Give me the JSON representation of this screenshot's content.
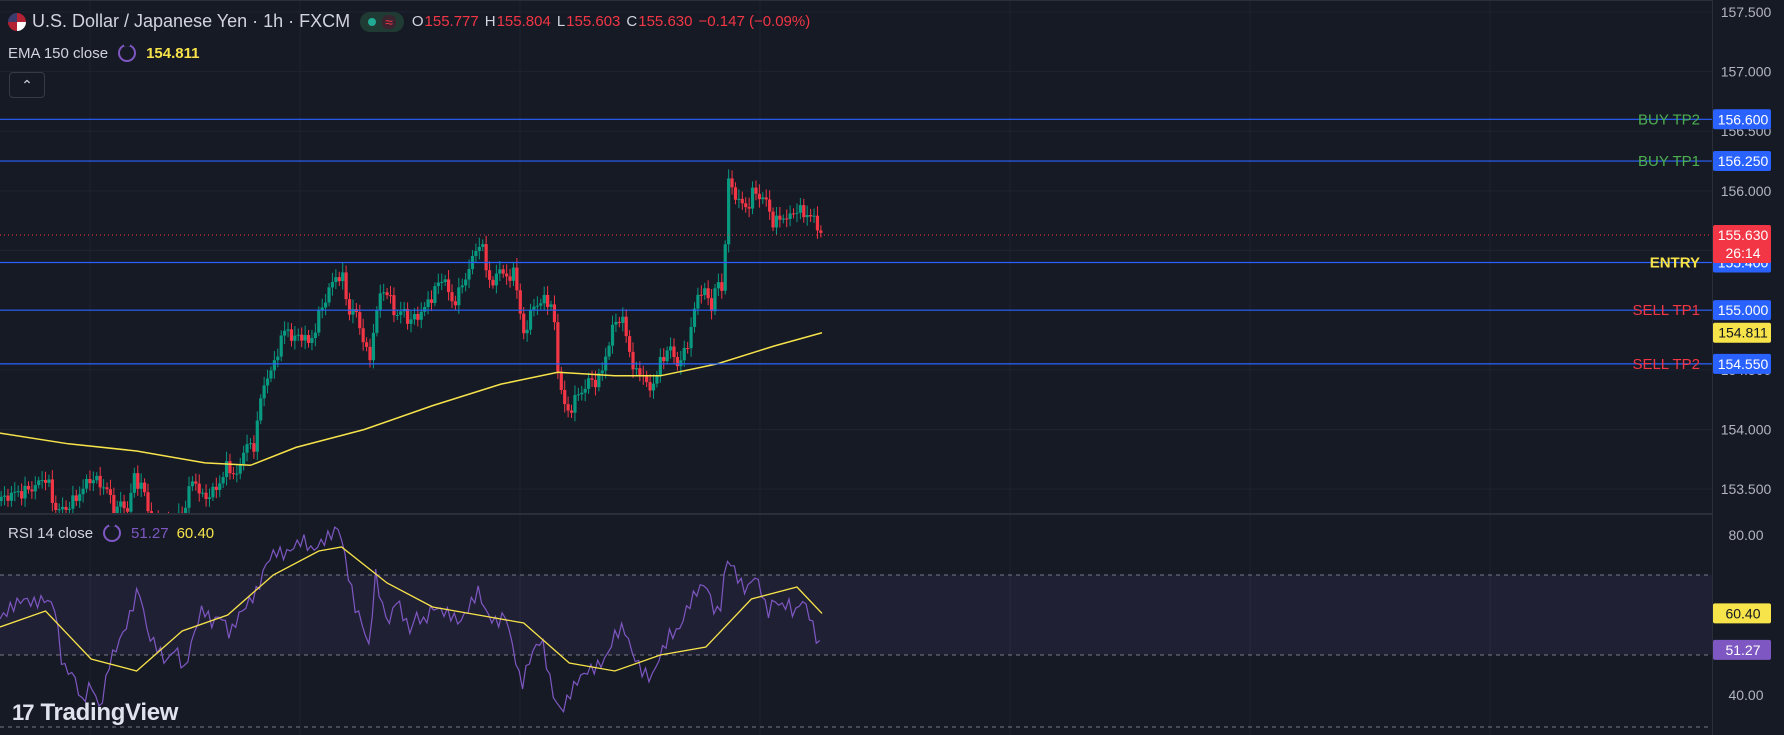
{
  "header": {
    "symbol_title": "U.S. Dollar / Japanese Yen · 1h · FXCM",
    "ohlc": {
      "o_label": "O",
      "o": "155.777",
      "h_label": "H",
      "h": "155.804",
      "l_label": "L",
      "l": "155.603",
      "c_label": "C",
      "c": "155.630",
      "change": "−0.147 (−0.09%)"
    },
    "status_wave_glyph": "≈",
    "collapse_glyph": "⌃"
  },
  "indicators": {
    "ema_label": "EMA 150 close",
    "ema_value": "154.811",
    "rsi_label": "RSI 14 close",
    "rsi_value": "51.27",
    "rsi_ma_value": "60.40"
  },
  "brand": {
    "name": "TradingView",
    "mark": "17"
  },
  "colors": {
    "background": "#161a25",
    "up": "#089981",
    "down": "#f23645",
    "ema": "#f7e34a",
    "rsi": "#7e57c2",
    "level_line": "#2962ff",
    "buy_label": "#4caf50",
    "sell_label": "#f23645",
    "entry_label": "#f7e34a"
  },
  "chart_data": [
    {
      "type": "candlestick",
      "symbol": "U.S. Dollar / Japanese Yen",
      "interval": "1h",
      "y_ticks": [
        "157.500",
        "157.000",
        "156.500",
        "156.000",
        "155.500",
        "155.000",
        "154.500",
        "154.000",
        "153.500"
      ],
      "ylim": [
        153.3,
        157.6
      ],
      "current_price": {
        "value": "155.630",
        "countdown": "26:14"
      },
      "levels": [
        {
          "label": "BUY TP2",
          "value": "156.600",
          "kind": "buy"
        },
        {
          "label": "BUY TP1",
          "value": "156.250",
          "kind": "buy"
        },
        {
          "label": "ENTRY",
          "value": "155.400",
          "kind": "entry"
        },
        {
          "label": "SELL TP1",
          "value": "155.000",
          "kind": "sell"
        },
        {
          "label": "SELL TP2",
          "value": "154.550",
          "kind": "sell"
        }
      ],
      "ema_last_label": "154.811",
      "waypoints": [
        [
          0,
          153.4
        ],
        [
          10,
          153.46
        ],
        [
          22,
          153.48
        ],
        [
          30,
          153.52
        ],
        [
          40,
          153.6
        ],
        [
          44,
          153.5
        ],
        [
          47,
          153.35
        ],
        [
          55,
          153.32
        ],
        [
          65,
          153.4
        ],
        [
          80,
          153.6
        ],
        [
          94,
          153.5
        ],
        [
          100,
          153.32
        ],
        [
          108,
          153.38
        ],
        [
          112,
          153.32
        ],
        [
          118,
          153.6
        ],
        [
          126,
          153.5
        ],
        [
          132,
          153.25
        ],
        [
          140,
          153.2
        ],
        [
          150,
          153.18
        ],
        [
          160,
          153.3
        ],
        [
          170,
          153.6
        ],
        [
          178,
          153.42
        ],
        [
          190,
          153.5
        ],
        [
          200,
          153.7
        ],
        [
          208,
          153.6
        ],
        [
          216,
          153.9
        ],
        [
          222,
          153.8
        ],
        [
          228,
          154.2
        ],
        [
          234,
          154.45
        ],
        [
          240,
          154.5
        ],
        [
          246,
          154.75
        ],
        [
          252,
          154.85
        ],
        [
          258,
          154.75
        ],
        [
          266,
          154.8
        ],
        [
          272,
          154.7
        ],
        [
          280,
          154.95
        ],
        [
          288,
          155.15
        ],
        [
          296,
          155.3
        ],
        [
          302,
          155.25
        ],
        [
          306,
          154.98
        ],
        [
          312,
          155.0
        ],
        [
          318,
          154.8
        ],
        [
          324,
          154.55
        ],
        [
          330,
          154.95
        ],
        [
          336,
          155.2
        ],
        [
          342,
          155.1
        ],
        [
          348,
          154.95
        ],
        [
          354,
          155.0
        ],
        [
          360,
          154.9
        ],
        [
          366,
          154.95
        ],
        [
          372,
          155.0
        ],
        [
          378,
          155.1
        ],
        [
          384,
          155.2
        ],
        [
          390,
          155.3
        ],
        [
          396,
          155.05
        ],
        [
          402,
          155.12
        ],
        [
          410,
          155.3
        ],
        [
          416,
          155.45
        ],
        [
          422,
          155.6
        ],
        [
          428,
          155.3
        ],
        [
          434,
          155.2
        ],
        [
          440,
          155.4
        ],
        [
          446,
          155.2
        ],
        [
          452,
          155.4
        ],
        [
          456,
          154.95
        ],
        [
          462,
          154.8
        ],
        [
          468,
          155.05
        ],
        [
          474,
          155.05
        ],
        [
          480,
          155.1
        ],
        [
          486,
          155.0
        ],
        [
          490,
          154.5
        ],
        [
          494,
          154.3
        ],
        [
          498,
          154.1
        ],
        [
          504,
          154.25
        ],
        [
          510,
          154.3
        ],
        [
          516,
          154.4
        ],
        [
          522,
          154.4
        ],
        [
          528,
          154.45
        ],
        [
          534,
          154.7
        ],
        [
          540,
          154.9
        ],
        [
          546,
          154.95
        ],
        [
          552,
          154.7
        ],
        [
          558,
          154.45
        ],
        [
          564,
          154.5
        ],
        [
          570,
          154.3
        ],
        [
          576,
          154.45
        ],
        [
          582,
          154.6
        ],
        [
          588,
          154.7
        ],
        [
          594,
          154.55
        ],
        [
          600,
          154.6
        ],
        [
          606,
          154.8
        ],
        [
          612,
          155.1
        ],
        [
          618,
          155.2
        ],
        [
          624,
          155.0
        ],
        [
          630,
          155.25
        ],
        [
          636,
          155.1
        ],
        [
          638,
          156.1
        ],
        [
          644,
          156.0
        ],
        [
          650,
          155.9
        ],
        [
          656,
          155.85
        ],
        [
          662,
          156.0
        ],
        [
          668,
          155.95
        ],
        [
          674,
          155.9
        ],
        [
          680,
          155.7
        ],
        [
          686,
          155.8
        ],
        [
          692,
          155.75
        ],
        [
          698,
          155.85
        ],
        [
          704,
          155.82
        ],
        [
          710,
          155.8
        ],
        [
          716,
          155.75
        ],
        [
          722,
          155.63
        ]
      ],
      "ema150_waypoints": [
        [
          0,
          153.97
        ],
        [
          60,
          153.88
        ],
        [
          120,
          153.82
        ],
        [
          180,
          153.72
        ],
        [
          220,
          153.7
        ],
        [
          260,
          153.85
        ],
        [
          320,
          154.0
        ],
        [
          380,
          154.2
        ],
        [
          440,
          154.38
        ],
        [
          490,
          154.48
        ],
        [
          540,
          154.45
        ],
        [
          580,
          154.45
        ],
        [
          630,
          154.55
        ],
        [
          680,
          154.7
        ],
        [
          722,
          154.811
        ]
      ]
    },
    {
      "type": "line",
      "name": "RSI 14 close",
      "y_ticks": [
        "80.00",
        "40.00"
      ],
      "ylim": [
        30,
        85
      ],
      "bands": {
        "upper": 70,
        "lower": 50,
        "note": "dashed reference lines"
      },
      "rsi_last_label": "51.27",
      "rsi_ma_last_label": "60.40",
      "rsi_waypoints": [
        [
          0,
          59
        ],
        [
          10,
          62
        ],
        [
          20,
          64
        ],
        [
          30,
          63
        ],
        [
          40,
          64
        ],
        [
          48,
          62
        ],
        [
          55,
          47
        ],
        [
          65,
          45
        ],
        [
          72,
          38
        ],
        [
          80,
          43
        ],
        [
          88,
          36
        ],
        [
          96,
          48
        ],
        [
          104,
          53
        ],
        [
          112,
          58
        ],
        [
          122,
          67
        ],
        [
          130,
          55
        ],
        [
          138,
          52
        ],
        [
          146,
          48
        ],
        [
          154,
          52
        ],
        [
          162,
          46
        ],
        [
          170,
          55
        ],
        [
          178,
          62
        ],
        [
          186,
          58
        ],
        [
          194,
          60
        ],
        [
          202,
          55
        ],
        [
          210,
          60
        ],
        [
          218,
          63
        ],
        [
          226,
          66
        ],
        [
          234,
          73
        ],
        [
          242,
          76
        ],
        [
          250,
          75
        ],
        [
          258,
          77
        ],
        [
          266,
          79
        ],
        [
          274,
          76
        ],
        [
          282,
          78
        ],
        [
          290,
          80
        ],
        [
          298,
          82
        ],
        [
          306,
          70
        ],
        [
          312,
          62
        ],
        [
          318,
          58
        ],
        [
          324,
          52
        ],
        [
          330,
          70
        ],
        [
          336,
          62
        ],
        [
          342,
          58
        ],
        [
          348,
          64
        ],
        [
          354,
          60
        ],
        [
          360,
          56
        ],
        [
          366,
          60
        ],
        [
          372,
          58
        ],
        [
          380,
          62
        ],
        [
          388,
          61
        ],
        [
          396,
          60
        ],
        [
          404,
          58
        ],
        [
          412,
          62
        ],
        [
          420,
          66
        ],
        [
          428,
          60
        ],
        [
          436,
          58
        ],
        [
          444,
          60
        ],
        [
          452,
          50
        ],
        [
          458,
          42
        ],
        [
          464,
          48
        ],
        [
          470,
          52
        ],
        [
          476,
          54
        ],
        [
          482,
          45
        ],
        [
          488,
          38
        ],
        [
          494,
          36
        ],
        [
          500,
          40
        ],
        [
          508,
          44
        ],
        [
          516,
          46
        ],
        [
          524,
          47
        ],
        [
          532,
          49
        ],
        [
          540,
          55
        ],
        [
          548,
          57
        ],
        [
          556,
          50
        ],
        [
          564,
          46
        ],
        [
          572,
          44
        ],
        [
          580,
          50
        ],
        [
          588,
          55
        ],
        [
          596,
          56
        ],
        [
          604,
          62
        ],
        [
          612,
          66
        ],
        [
          620,
          68
        ],
        [
          626,
          62
        ],
        [
          632,
          60
        ],
        [
          638,
          74
        ],
        [
          644,
          72
        ],
        [
          650,
          68
        ],
        [
          656,
          66
        ],
        [
          662,
          70
        ],
        [
          668,
          67
        ],
        [
          674,
          60
        ],
        [
          680,
          64
        ],
        [
          686,
          62
        ],
        [
          692,
          63
        ],
        [
          698,
          60
        ],
        [
          704,
          64
        ],
        [
          710,
          61
        ],
        [
          716,
          55
        ],
        [
          722,
          51.27
        ]
      ],
      "rsi_ma_waypoints": [
        [
          0,
          57
        ],
        [
          40,
          61
        ],
        [
          80,
          49
        ],
        [
          120,
          46
        ],
        [
          160,
          56
        ],
        [
          200,
          60
        ],
        [
          240,
          70
        ],
        [
          280,
          76
        ],
        [
          300,
          77
        ],
        [
          340,
          68
        ],
        [
          380,
          62
        ],
        [
          420,
          60
        ],
        [
          460,
          58
        ],
        [
          500,
          48
        ],
        [
          540,
          46
        ],
        [
          580,
          50
        ],
        [
          620,
          52
        ],
        [
          660,
          64
        ],
        [
          700,
          67
        ],
        [
          722,
          60.4
        ]
      ]
    }
  ]
}
